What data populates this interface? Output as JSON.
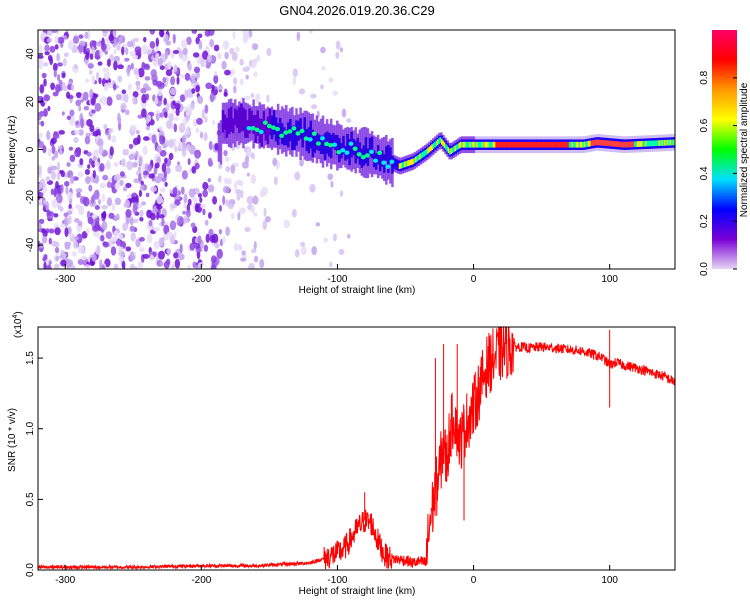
{
  "title": "GN04.2026.019.20.36.C29",
  "chart_data": [
    {
      "type": "heatmap",
      "name": "spectrogram",
      "xlabel": "Height of straight line (km)",
      "ylabel": "Frequency (Hz)",
      "xlim": [
        -320,
        148
      ],
      "ylim": [
        -50,
        50
      ],
      "xticks": [
        -300,
        -200,
        -100,
        0,
        100
      ],
      "yticks": [
        -40,
        -20,
        0,
        20,
        40
      ],
      "grid": false,
      "ridge": [
        {
          "x": -185,
          "f": 11
        },
        {
          "x": -165,
          "f": 11
        },
        {
          "x": -150,
          "f": 9
        },
        {
          "x": -130,
          "f": 7
        },
        {
          "x": -110,
          "f": 3
        },
        {
          "x": -90,
          "f": 0
        },
        {
          "x": -75,
          "f": -2
        },
        {
          "x": -62,
          "f": -5
        },
        {
          "x": -55,
          "f": -7
        },
        {
          "x": -45,
          "f": -5
        },
        {
          "x": -35,
          "f": -1
        },
        {
          "x": -25,
          "f": 4
        },
        {
          "x": -18,
          "f": -1
        },
        {
          "x": -10,
          "f": 2
        },
        {
          "x": 0,
          "f": 2
        },
        {
          "x": 80,
          "f": 2
        },
        {
          "x": 90,
          "f": 3
        },
        {
          "x": 110,
          "f": 2
        },
        {
          "x": 148,
          "f": 3
        }
      ],
      "colorbar": {
        "label": "Normalized spectral amplitude",
        "range": [
          0,
          1
        ],
        "ticks": [
          "0.0",
          "0.2",
          "0.4",
          "0.6",
          "0.8"
        ],
        "tick_values": [
          0,
          0.2,
          0.4,
          0.6,
          0.8
        ],
        "colors": [
          "#e6d5f5",
          "#7a00d6",
          "#0000ff",
          "#00e0ff",
          "#00ff00",
          "#ffff00",
          "#ff9900",
          "#ff0000",
          "#ff0066"
        ]
      }
    },
    {
      "type": "line",
      "name": "snr",
      "color": "#ff0000",
      "xlabel": "Height of straight line (km)",
      "ylabel": "SNR (10 * v/v)",
      "multiplier": "(x10",
      "multiplier_exp": "4",
      "multiplier_close": ")",
      "xlim": [
        -320,
        148
      ],
      "ylim": [
        0,
        1.72
      ],
      "xticks": [
        -300,
        -200,
        -100,
        0,
        100
      ],
      "yticks": [
        "0.0",
        "0.5",
        "1.0",
        "1.5"
      ],
      "ytick_values": [
        0,
        0.5,
        1.0,
        1.5
      ],
      "x": [
        -320,
        -250,
        -200,
        -160,
        -140,
        -120,
        -110,
        -100,
        -95,
        -90,
        -85,
        -80,
        -75,
        -70,
        -65,
        -60,
        -50,
        -45,
        -40,
        -35,
        -32,
        -28,
        -25,
        -22,
        -20,
        -17,
        -14,
        -10,
        -5,
        0,
        5,
        10,
        15,
        20,
        25,
        30,
        35,
        40,
        50,
        60,
        70,
        80,
        90,
        95,
        100,
        105,
        110,
        120,
        130,
        140,
        148
      ],
      "values": [
        0.02,
        0.02,
        0.03,
        0.03,
        0.04,
        0.05,
        0.08,
        0.12,
        0.15,
        0.22,
        0.3,
        0.35,
        0.33,
        0.2,
        0.1,
        0.08,
        0.07,
        0.05,
        0.06,
        0.05,
        0.35,
        0.55,
        0.7,
        0.9,
        0.75,
        1.0,
        1.1,
        0.9,
        1.05,
        1.15,
        1.3,
        1.45,
        1.5,
        1.55,
        1.57,
        1.58,
        1.58,
        1.57,
        1.58,
        1.57,
        1.56,
        1.55,
        1.52,
        1.5,
        1.45,
        1.47,
        1.45,
        1.43,
        1.4,
        1.37,
        1.33
      ],
      "spikes": [
        {
          "x": -80,
          "y": 0.55
        },
        {
          "x": -28,
          "y": 1.5
        },
        {
          "x": -22,
          "y": 1.6
        },
        {
          "x": -12,
          "y": 1.6
        },
        {
          "x": -7,
          "y": 0.35
        },
        {
          "x": 100,
          "y": 1.7
        },
        {
          "x": 100,
          "y": 1.15
        }
      ]
    }
  ]
}
